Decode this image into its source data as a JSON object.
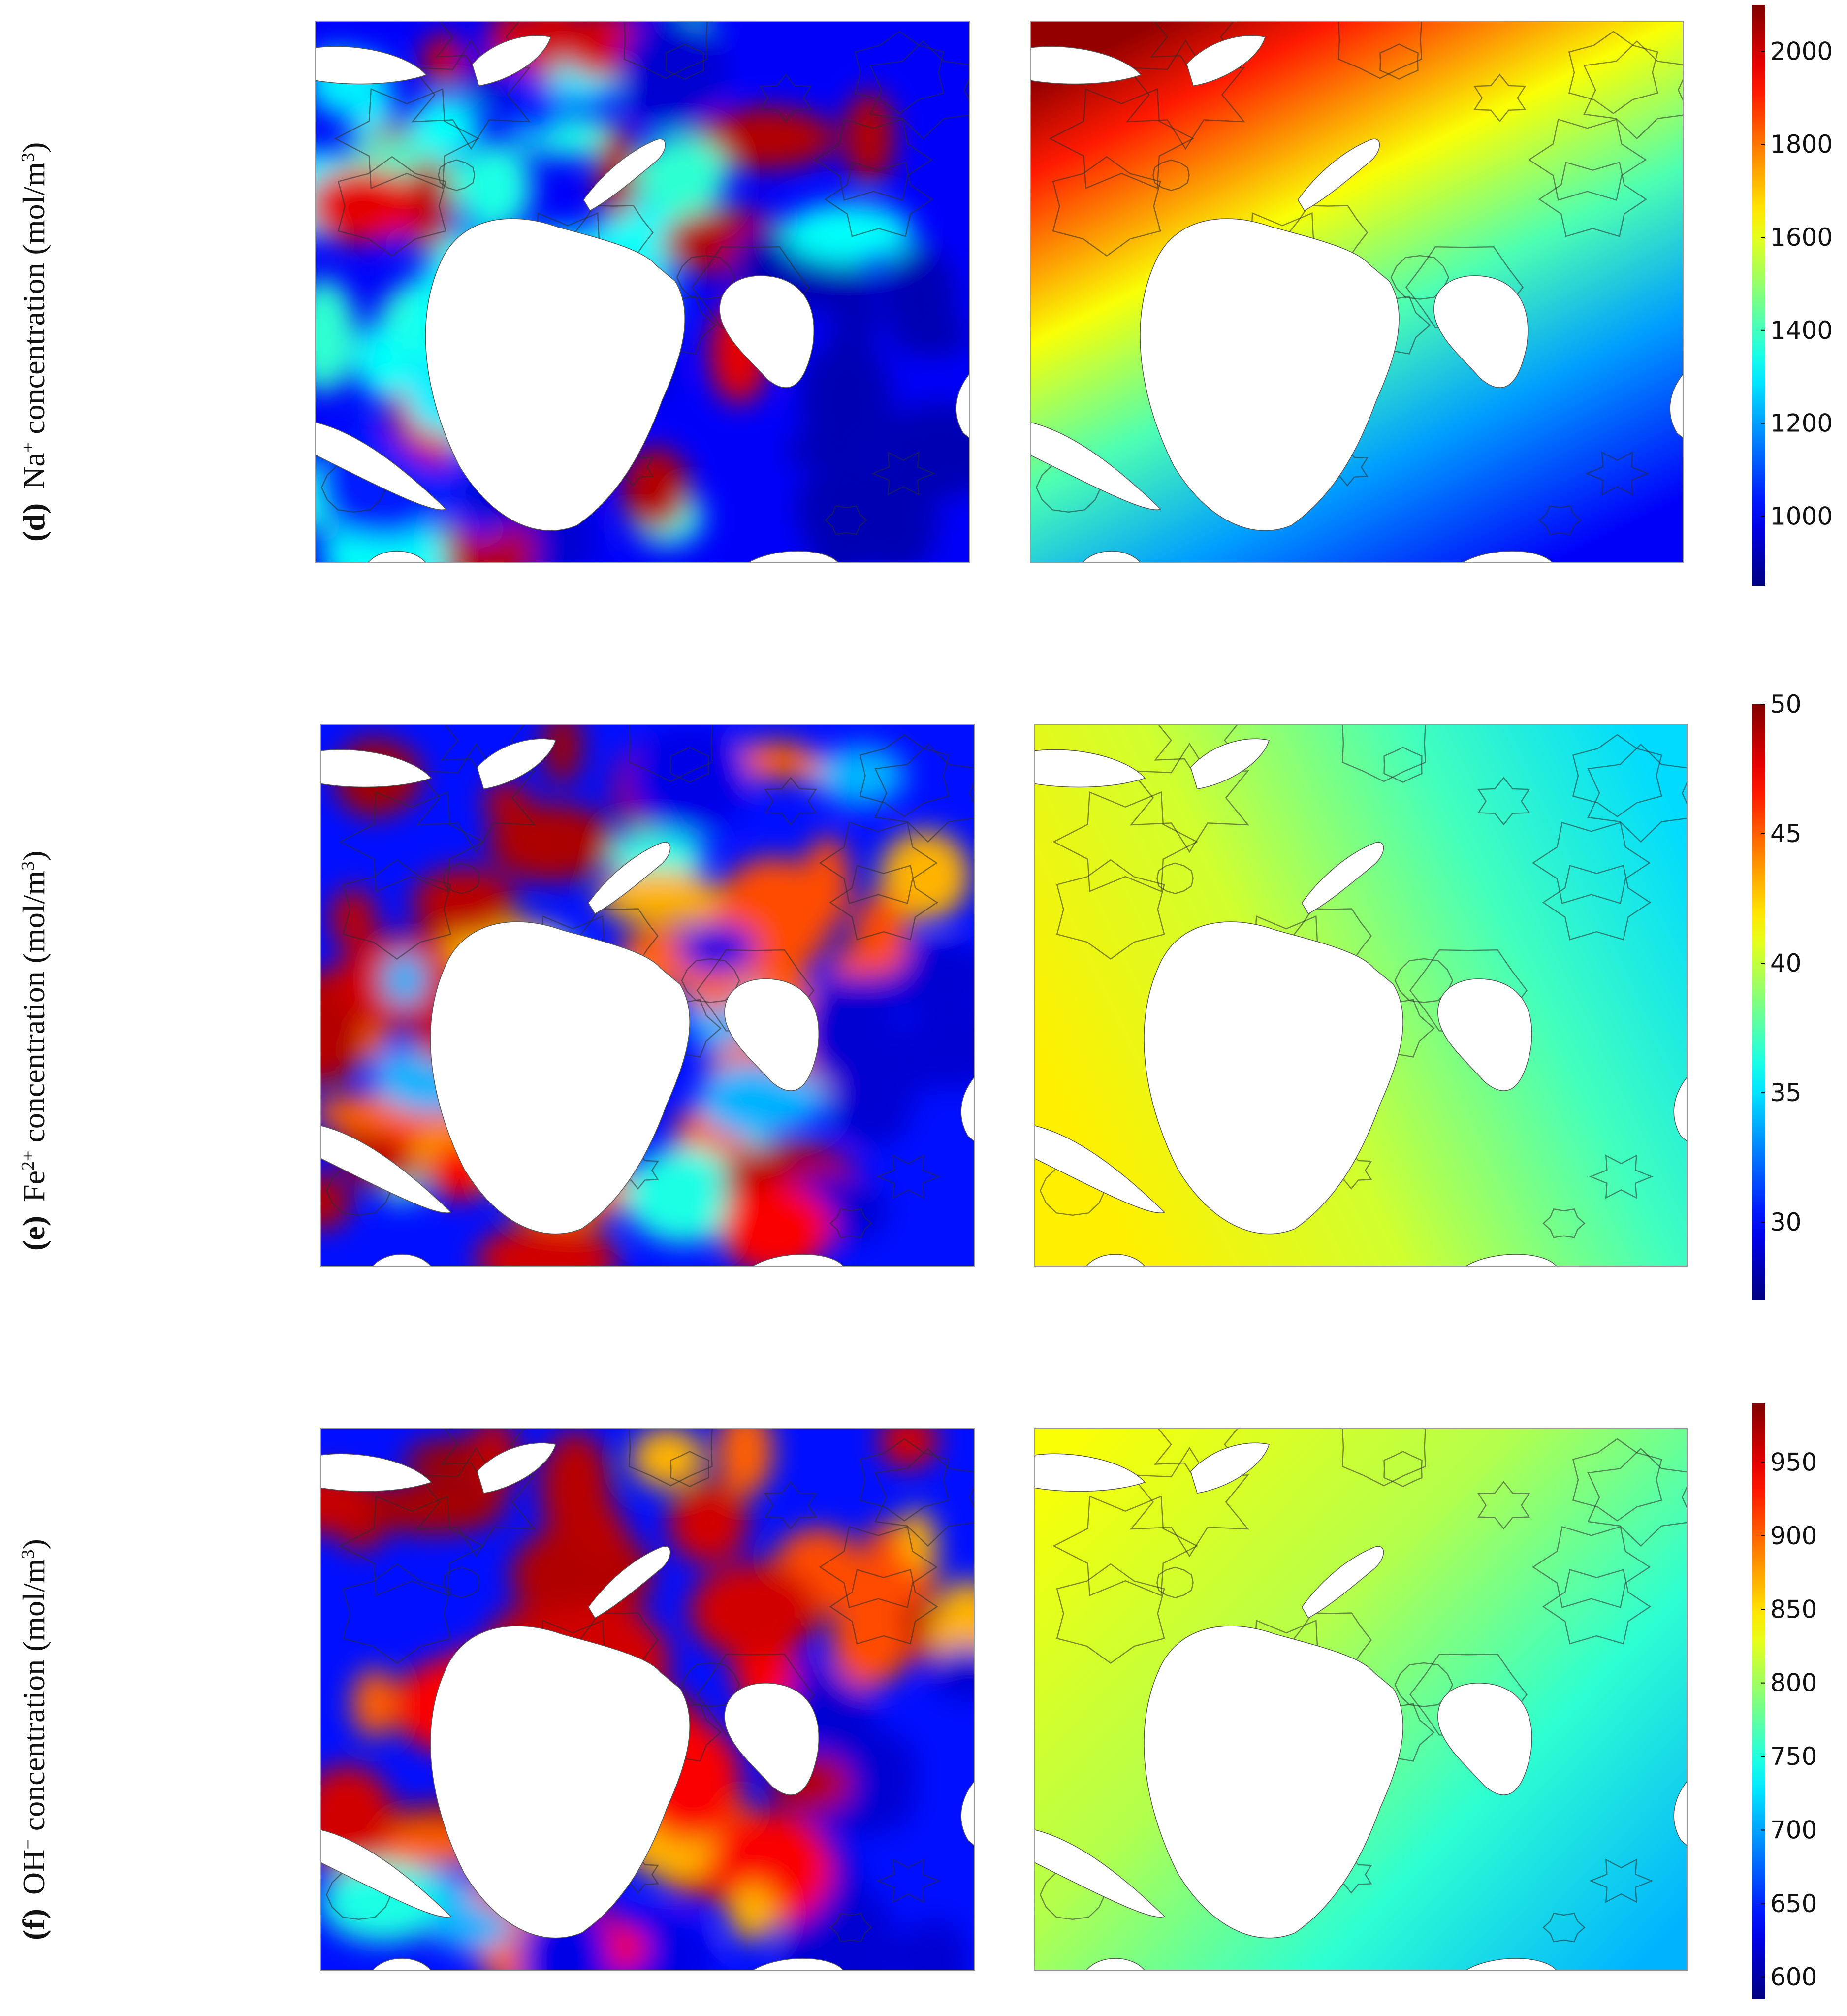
{
  "rows": [
    {
      "id": "d",
      "letter": "(d)",
      "ion_prefix": "Na",
      "ion_sup": "+",
      "label_suffix": " concentration (mol/m",
      "unit_sup": "3",
      "unit_close": ")",
      "colorbar": {
        "ticks": [
          "2000",
          "1800",
          "1600",
          "1400",
          "1200",
          "1000"
        ],
        "tick_values": [
          2000,
          1800,
          1600,
          1400,
          1200,
          1000
        ],
        "range": [
          850,
          2100
        ]
      },
      "left_panel_style": "patchy-blue",
      "right_panel_style": "gradient-top-red"
    },
    {
      "id": "e",
      "letter": "(e)",
      "ion_prefix": "Fe",
      "ion_sup": "2+",
      "label_suffix": " concentration (mol/m",
      "unit_sup": "3",
      "unit_close": ")",
      "colorbar": {
        "ticks": [
          "50",
          "45",
          "40",
          "35",
          "30"
        ],
        "tick_values": [
          50,
          45,
          40,
          35,
          30
        ],
        "range": [
          27,
          50
        ]
      },
      "left_panel_style": "patchy-red",
      "right_panel_style": "gradient-yellow-cyan"
    },
    {
      "id": "f",
      "letter": "(f)",
      "ion_prefix": "OH",
      "ion_sup": "−",
      "label_suffix": " concentration (mol/m",
      "unit_sup": "3",
      "unit_close": ")",
      "colorbar": {
        "ticks": [
          "950",
          "900",
          "850",
          "800",
          "750",
          "700",
          "650",
          "600"
        ],
        "tick_values": [
          950,
          900,
          850,
          800,
          750,
          700,
          650,
          600
        ],
        "range": [
          585,
          990
        ]
      },
      "left_panel_style": "patchy-red",
      "right_panel_style": "gradient-yellow-cyan-soft"
    }
  ],
  "chart_data": [
    {
      "type": "heatmap",
      "title": "",
      "ylabel": "(d) Na+ concentration (mol/m3)",
      "colorbar_ticks": [
        2000,
        1800,
        1600,
        1400,
        1200,
        1000
      ],
      "colormap": "jet",
      "panels": 2
    },
    {
      "type": "heatmap",
      "title": "",
      "ylabel": "(e) Fe2+ concentration (mol/m3)",
      "colorbar_ticks": [
        50,
        45,
        40,
        35,
        30
      ],
      "colormap": "jet",
      "panels": 2
    },
    {
      "type": "heatmap",
      "title": "",
      "ylabel": "(f) OH− concentration (mol/m3)",
      "colorbar_ticks": [
        950,
        900,
        850,
        800,
        750,
        700,
        650,
        600
      ],
      "colormap": "jet",
      "panels": 2
    }
  ]
}
